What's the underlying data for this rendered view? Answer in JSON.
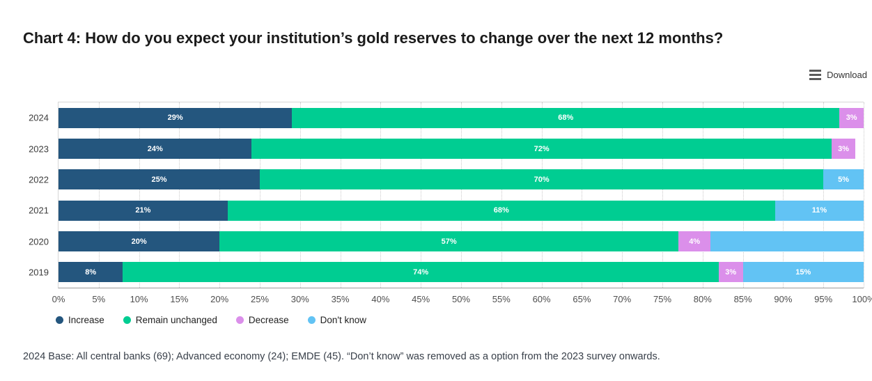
{
  "page": {
    "title": "Chart 4: How do you expect your institution’s gold reserves to change over the next 12 months?",
    "download_label": "Download",
    "footer": "2024 Base: All central banks (69); Advanced economy (24); EMDE (45). “Don’t know” was removed as a option from the 2023 survey onwards."
  },
  "chart_data": {
    "type": "bar",
    "orientation": "horizontal-stacked",
    "title": "Chart 4: How do you expect your institution’s gold reserves to change over the next 12 months?",
    "categories": [
      "2024",
      "2023",
      "2022",
      "2021",
      "2020",
      "2019"
    ],
    "series": [
      {
        "name": "Increase",
        "color": "#24567E",
        "values": [
          29,
          24,
          25,
          21,
          20,
          8
        ],
        "labels": [
          "29%",
          "24%",
          "25%",
          "21%",
          "20%",
          "8%"
        ]
      },
      {
        "name": "Remain unchanged",
        "color": "#00CD92",
        "values": [
          68,
          72,
          70,
          68,
          57,
          74
        ],
        "labels": [
          "68%",
          "72%",
          "70%",
          "68%",
          "57%",
          "74%"
        ]
      },
      {
        "name": "Decrease",
        "color": "#DB8FEA",
        "values": [
          3,
          3,
          0,
          0,
          4,
          3
        ],
        "labels": [
          "3%",
          "3%",
          "",
          "",
          "4%",
          "3%"
        ]
      },
      {
        "name": "Don't know",
        "color": "#62C3F4",
        "values": [
          0,
          0,
          5,
          11,
          19,
          15
        ],
        "labels": [
          "",
          "",
          "5%",
          "11%",
          "",
          "15%"
        ]
      }
    ],
    "xlabel": "",
    "ylabel": "",
    "xlim": [
      0,
      100
    ],
    "x_ticks": [
      "0%",
      "5%",
      "10%",
      "15%",
      "20%",
      "25%",
      "30%",
      "35%",
      "40%",
      "45%",
      "50%",
      "55%",
      "60%",
      "65%",
      "70%",
      "75%",
      "80%",
      "85%",
      "90%",
      "95%",
      "100%"
    ],
    "grid": "vertical-dotted",
    "legend_position": "bottom-left",
    "value_label_color": "#ffffff"
  }
}
